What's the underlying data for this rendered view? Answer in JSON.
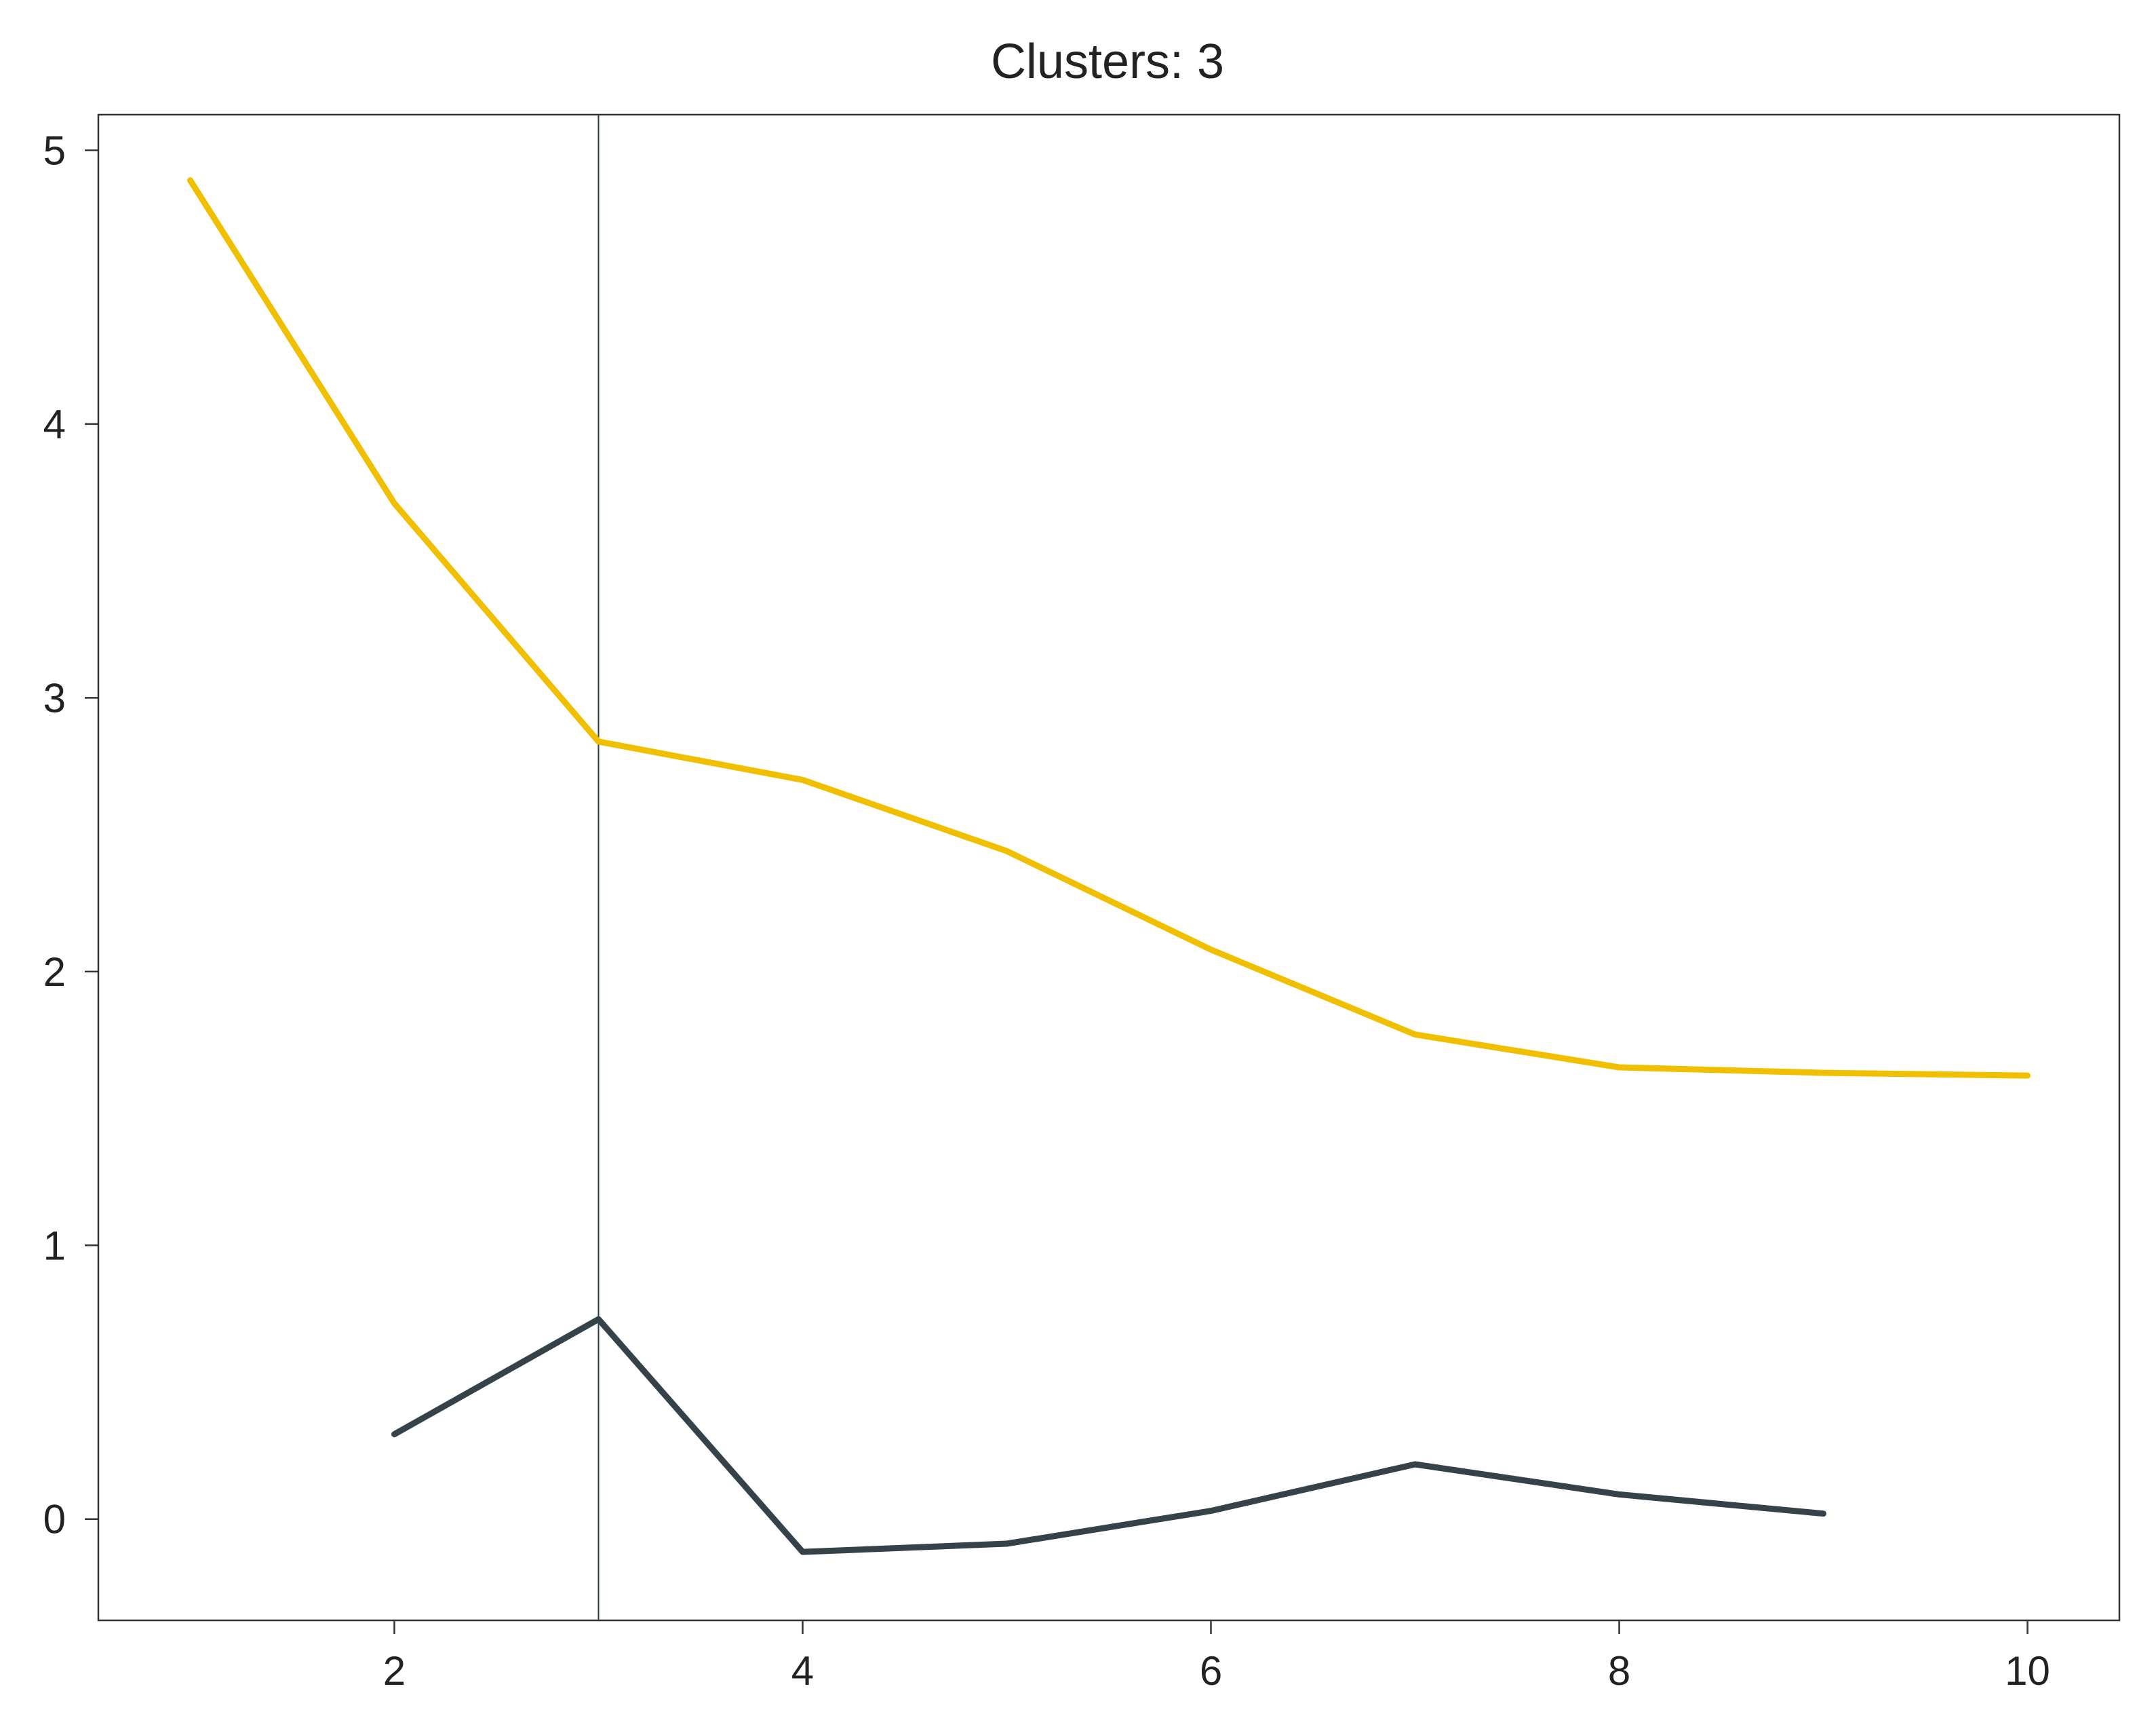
{
  "chart_data": {
    "type": "line",
    "title": "Clusters: 3",
    "xlabel": "",
    "ylabel": "",
    "xlim": [
      0.55,
      10.45
    ],
    "ylim": [
      -0.37,
      5.13
    ],
    "xticks": [
      2,
      4,
      6,
      8,
      10
    ],
    "yticks": [
      0,
      1,
      2,
      3,
      4,
      5
    ],
    "grid": false,
    "legend": "none",
    "vline": {
      "x": 3,
      "color": "#2e3a44"
    },
    "series": [
      {
        "color": "#f0c000",
        "x": [
          1,
          2,
          3,
          4,
          5,
          6,
          7,
          8,
          9,
          10
        ],
        "values": [
          4.89,
          3.71,
          2.84,
          2.7,
          2.44,
          2.08,
          1.77,
          1.65,
          1.63,
          1.62
        ]
      },
      {
        "color": "#36424a",
        "x": [
          2,
          3,
          4,
          5,
          6,
          7,
          8,
          9
        ],
        "values": [
          0.31,
          0.73,
          -0.12,
          -0.09,
          0.03,
          0.2,
          0.09,
          0.02
        ]
      }
    ]
  }
}
